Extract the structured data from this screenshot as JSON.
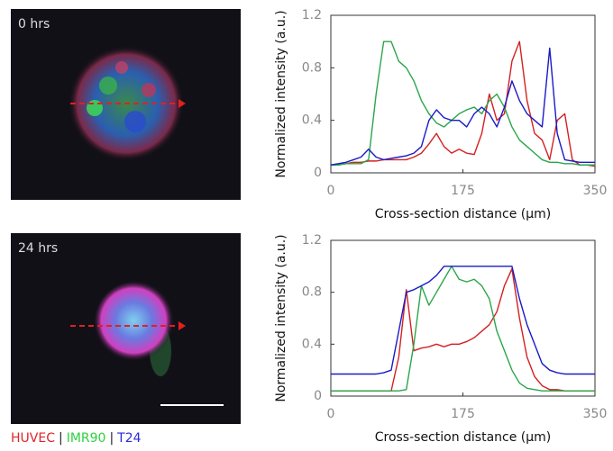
{
  "panels": [
    {
      "label": "0 hrs"
    },
    {
      "label": "24 hrs"
    }
  ],
  "legend": {
    "items": [
      {
        "text": "HUVEC",
        "color": "#e0242a"
      },
      {
        "text": "IMR90",
        "color": "#2fd040"
      },
      {
        "text": "T24",
        "color": "#2a2ad8"
      }
    ],
    "separator": "|"
  },
  "chart_data": [
    {
      "type": "line",
      "xlabel": "Cross-section distance (μm)",
      "ylabel": "Normalized intensity (a.u.)",
      "xlim": [
        0,
        350
      ],
      "xticks": [
        0,
        175,
        350
      ],
      "ylim": [
        0,
        1.2
      ],
      "yticks": [
        0,
        0.4,
        0.8,
        1.2
      ],
      "x": [
        0,
        10,
        20,
        30,
        40,
        50,
        60,
        70,
        80,
        90,
        100,
        110,
        120,
        130,
        140,
        150,
        160,
        170,
        180,
        190,
        200,
        210,
        220,
        230,
        240,
        250,
        260,
        270,
        280,
        290,
        300,
        310,
        320,
        330,
        340,
        350
      ],
      "series": [
        {
          "name": "HUVEC",
          "color": "#d42020",
          "values": [
            0.06,
            0.06,
            0.07,
            0.08,
            0.08,
            0.09,
            0.09,
            0.1,
            0.1,
            0.1,
            0.1,
            0.12,
            0.15,
            0.22,
            0.3,
            0.2,
            0.15,
            0.18,
            0.15,
            0.14,
            0.3,
            0.6,
            0.4,
            0.45,
            0.85,
            1.0,
            0.55,
            0.3,
            0.25,
            0.1,
            0.4,
            0.45,
            0.1,
            0.06,
            0.06,
            0.05
          ]
        },
        {
          "name": "IMR90",
          "color": "#2aa64a",
          "values": [
            0.06,
            0.06,
            0.07,
            0.07,
            0.07,
            0.1,
            0.6,
            1.0,
            1.0,
            0.85,
            0.8,
            0.7,
            0.55,
            0.45,
            0.38,
            0.35,
            0.4,
            0.45,
            0.48,
            0.5,
            0.45,
            0.55,
            0.6,
            0.5,
            0.35,
            0.25,
            0.2,
            0.15,
            0.1,
            0.08,
            0.08,
            0.07,
            0.07,
            0.06,
            0.06,
            0.06
          ]
        },
        {
          "name": "T24",
          "color": "#1a1ac8",
          "values": [
            0.06,
            0.07,
            0.08,
            0.1,
            0.12,
            0.18,
            0.12,
            0.1,
            0.11,
            0.12,
            0.13,
            0.15,
            0.2,
            0.4,
            0.48,
            0.42,
            0.4,
            0.4,
            0.35,
            0.45,
            0.5,
            0.45,
            0.35,
            0.5,
            0.7,
            0.55,
            0.45,
            0.4,
            0.35,
            0.95,
            0.3,
            0.1,
            0.09,
            0.08,
            0.08,
            0.08
          ]
        }
      ]
    },
    {
      "type": "line",
      "xlabel": "Cross-section distance (μm)",
      "ylabel": "Normalized intensity (a.u.)",
      "xlim": [
        0,
        350
      ],
      "xticks": [
        0,
        175,
        350
      ],
      "ylim": [
        0,
        1.2
      ],
      "yticks": [
        0,
        0.4,
        0.8,
        1.2
      ],
      "x": [
        0,
        10,
        20,
        30,
        40,
        50,
        60,
        70,
        80,
        90,
        100,
        110,
        120,
        130,
        140,
        150,
        160,
        170,
        180,
        190,
        200,
        210,
        220,
        230,
        240,
        250,
        260,
        270,
        280,
        290,
        300,
        310,
        320,
        330,
        340,
        350
      ],
      "series": [
        {
          "name": "HUVEC",
          "color": "#d42020",
          "values": [
            0.04,
            0.04,
            0.04,
            0.04,
            0.04,
            0.04,
            0.04,
            0.04,
            0.04,
            0.3,
            0.82,
            0.35,
            0.37,
            0.38,
            0.4,
            0.38,
            0.4,
            0.4,
            0.42,
            0.45,
            0.5,
            0.55,
            0.65,
            0.85,
            0.98,
            0.6,
            0.3,
            0.15,
            0.08,
            0.05,
            0.05,
            0.04,
            0.04,
            0.04,
            0.04,
            0.04
          ]
        },
        {
          "name": "IMR90",
          "color": "#2aa64a",
          "values": [
            0.04,
            0.04,
            0.04,
            0.04,
            0.04,
            0.04,
            0.04,
            0.04,
            0.04,
            0.04,
            0.05,
            0.4,
            0.85,
            0.7,
            0.8,
            0.9,
            1.0,
            0.9,
            0.88,
            0.9,
            0.85,
            0.75,
            0.5,
            0.35,
            0.2,
            0.1,
            0.06,
            0.05,
            0.04,
            0.04,
            0.04,
            0.04,
            0.04,
            0.04,
            0.04,
            0.04
          ]
        },
        {
          "name": "T24",
          "color": "#1a1ac8",
          "values": [
            0.17,
            0.17,
            0.17,
            0.17,
            0.17,
            0.17,
            0.17,
            0.18,
            0.2,
            0.5,
            0.8,
            0.82,
            0.85,
            0.88,
            0.93,
            1.0,
            1.0,
            1.0,
            1.0,
            1.0,
            1.0,
            1.0,
            1.0,
            1.0,
            1.0,
            0.75,
            0.55,
            0.4,
            0.25,
            0.2,
            0.18,
            0.17,
            0.17,
            0.17,
            0.17,
            0.17
          ]
        }
      ]
    }
  ]
}
